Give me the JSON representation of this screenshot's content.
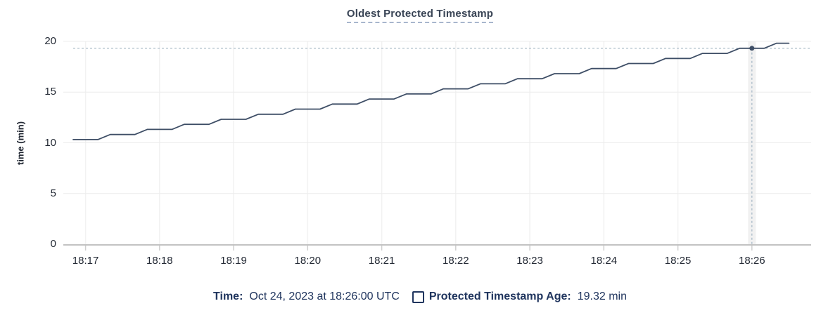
{
  "header": {
    "title": "Oldest Protected Timestamp"
  },
  "legend": {
    "time_label": "Time:",
    "time_value": "Oct 24, 2023 at 18:26:00 UTC",
    "series_label": "Protected Timestamp Age:",
    "series_value": "19.32 min"
  },
  "colors": {
    "line": "#3e4e66",
    "title": "#394455",
    "tick_text": "#242a35",
    "legend_text": "#20355e",
    "grid_h": "#ececec",
    "grid_v": "#f2f2f2",
    "axis": "#adadad",
    "tick": "#cfcfcf",
    "crosshair": "#a3b5c4",
    "hover_band": "#f1f1f1"
  },
  "chart_data": {
    "type": "line",
    "title": "Oldest Protected Timestamp",
    "xlabel": "",
    "ylabel": "time (min)",
    "ylim": [
      0,
      20
    ],
    "y_ticks": [
      0,
      5,
      10,
      15,
      20
    ],
    "x_domain": [
      "18:16:42",
      "18:26:48"
    ],
    "x_tick_labels": [
      "18:17",
      "18:18",
      "18:19",
      "18:20",
      "18:21",
      "18:22",
      "18:23",
      "18:24",
      "18:25",
      "18:26"
    ],
    "grid": true,
    "legend_position": "bottom",
    "series": [
      {
        "name": "Protected Timestamp Age",
        "unit": "min",
        "points": [
          [
            "18:16:50",
            10.32
          ],
          [
            "18:17:00",
            10.32
          ],
          [
            "18:17:10",
            10.32
          ],
          [
            "18:17:20",
            10.82
          ],
          [
            "18:17:30",
            10.82
          ],
          [
            "18:17:40",
            10.82
          ],
          [
            "18:17:50",
            11.32
          ],
          [
            "18:18:00",
            11.32
          ],
          [
            "18:18:10",
            11.32
          ],
          [
            "18:18:20",
            11.82
          ],
          [
            "18:18:30",
            11.82
          ],
          [
            "18:18:40",
            11.82
          ],
          [
            "18:18:50",
            12.32
          ],
          [
            "18:19:00",
            12.32
          ],
          [
            "18:19:10",
            12.32
          ],
          [
            "18:19:20",
            12.82
          ],
          [
            "18:19:30",
            12.82
          ],
          [
            "18:19:40",
            12.82
          ],
          [
            "18:19:50",
            13.32
          ],
          [
            "18:20:00",
            13.32
          ],
          [
            "18:20:10",
            13.32
          ],
          [
            "18:20:20",
            13.82
          ],
          [
            "18:20:30",
            13.82
          ],
          [
            "18:20:40",
            13.82
          ],
          [
            "18:20:50",
            14.32
          ],
          [
            "18:21:00",
            14.32
          ],
          [
            "18:21:10",
            14.32
          ],
          [
            "18:21:20",
            14.82
          ],
          [
            "18:21:30",
            14.82
          ],
          [
            "18:21:40",
            14.82
          ],
          [
            "18:21:50",
            15.32
          ],
          [
            "18:22:00",
            15.32
          ],
          [
            "18:22:10",
            15.32
          ],
          [
            "18:22:20",
            15.82
          ],
          [
            "18:22:30",
            15.82
          ],
          [
            "18:22:40",
            15.82
          ],
          [
            "18:22:50",
            16.32
          ],
          [
            "18:23:00",
            16.32
          ],
          [
            "18:23:10",
            16.32
          ],
          [
            "18:23:20",
            16.82
          ],
          [
            "18:23:30",
            16.82
          ],
          [
            "18:23:40",
            16.82
          ],
          [
            "18:23:50",
            17.32
          ],
          [
            "18:24:00",
            17.32
          ],
          [
            "18:24:10",
            17.32
          ],
          [
            "18:24:20",
            17.82
          ],
          [
            "18:24:30",
            17.82
          ],
          [
            "18:24:40",
            17.82
          ],
          [
            "18:24:50",
            18.32
          ],
          [
            "18:25:00",
            18.32
          ],
          [
            "18:25:10",
            18.32
          ],
          [
            "18:25:20",
            18.82
          ],
          [
            "18:25:30",
            18.82
          ],
          [
            "18:25:40",
            18.82
          ],
          [
            "18:25:50",
            19.32
          ],
          [
            "18:26:00",
            19.32
          ],
          [
            "18:26:10",
            19.32
          ],
          [
            "18:26:20",
            19.82
          ],
          [
            "18:26:30",
            19.82
          ]
        ]
      }
    ],
    "hover": {
      "time": "18:26:00",
      "value": 19.32,
      "value_label": "19.32 min",
      "date_label": "Oct 24, 2023 at 18:26:00 UTC"
    }
  }
}
